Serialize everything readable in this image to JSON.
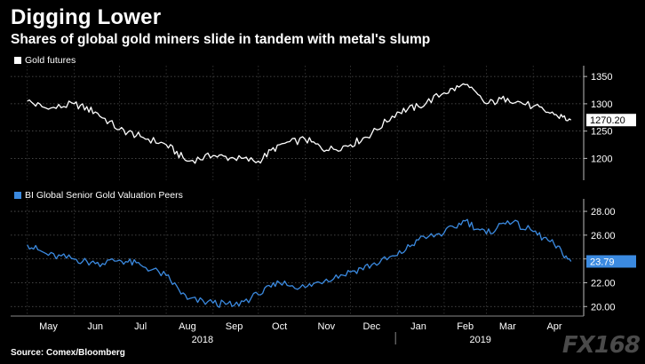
{
  "chart_data": [
    {
      "type": "line",
      "title": "Digging Lower",
      "subtitle": "Shares of global gold miners slide in tandem with metal's slump",
      "series_name": "Gold futures",
      "color": "#ffffff",
      "ylim": [
        1160,
        1360
      ],
      "yticks": [
        1200,
        1250,
        1300,
        1350
      ],
      "last_value_label": "1270.20",
      "x": [
        "2018-05-01",
        "2018-05-15",
        "2018-06-01",
        "2018-06-15",
        "2018-07-01",
        "2018-07-15",
        "2018-08-01",
        "2018-08-15",
        "2018-09-01",
        "2018-09-15",
        "2018-10-01",
        "2018-10-15",
        "2018-11-01",
        "2018-11-15",
        "2018-12-01",
        "2018-12-15",
        "2019-01-01",
        "2019-01-15",
        "2019-02-01",
        "2019-02-15",
        "2019-03-01",
        "2019-03-15",
        "2019-04-01",
        "2019-04-15",
        "2019-04-26"
      ],
      "values": [
        1305,
        1290,
        1300,
        1285,
        1253,
        1240,
        1225,
        1195,
        1205,
        1200,
        1195,
        1225,
        1235,
        1215,
        1225,
        1245,
        1285,
        1295,
        1320,
        1335,
        1300,
        1310,
        1295,
        1280,
        1270.2
      ]
    },
    {
      "type": "line",
      "series_name": "BI Global Senior Gold Valuation Peers",
      "color": "#3b8ae0",
      "ylim": [
        19.2,
        28.6
      ],
      "yticks": [
        "20.00",
        "22.00",
        "24.00",
        "26.00",
        "28.00"
      ],
      "last_value_label": "23.79",
      "x": [
        "2018-05-01",
        "2018-05-15",
        "2018-06-01",
        "2018-06-15",
        "2018-07-01",
        "2018-07-15",
        "2018-08-01",
        "2018-08-15",
        "2018-09-01",
        "2018-09-15",
        "2018-10-01",
        "2018-10-15",
        "2018-11-01",
        "2018-11-15",
        "2018-12-01",
        "2018-12-15",
        "2019-01-01",
        "2019-01-15",
        "2019-02-01",
        "2019-02-15",
        "2019-03-01",
        "2019-03-15",
        "2019-04-01",
        "2019-04-15",
        "2019-04-26"
      ],
      "values": [
        25.2,
        24.3,
        24.0,
        23.6,
        23.9,
        23.5,
        22.6,
        20.6,
        20.3,
        20.1,
        21.0,
        22.0,
        21.6,
        22.3,
        22.9,
        23.5,
        24.3,
        25.6,
        26.2,
        27.2,
        26.1,
        27.2,
        26.3,
        25.2,
        23.79
      ]
    }
  ],
  "xaxis": {
    "months": [
      "May",
      "Jun",
      "Jul",
      "Aug",
      "Sep",
      "Oct",
      "Nov",
      "Dec",
      "Jan",
      "Feb",
      "Mar",
      "Apr"
    ],
    "years": [
      "2018",
      "2019"
    ]
  },
  "source": "Source: Comex/Bloomberg",
  "watermark": "FX168"
}
